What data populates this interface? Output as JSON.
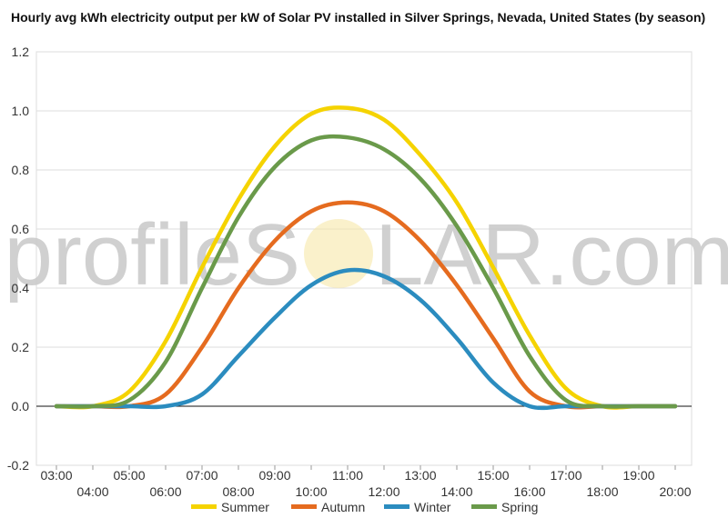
{
  "chart_data": {
    "type": "line",
    "title": "Hourly avg kWh electricity output per kW of Solar PV installed in Silver Springs, Nevada, United States (by season)",
    "xlabel": "",
    "ylabel": "",
    "ylim": [
      -0.2,
      1.2
    ],
    "yticks": [
      "-0.2",
      "0.0",
      "0.2",
      "0.4",
      "0.6",
      "0.8",
      "1.0",
      "1.2"
    ],
    "x": [
      "03:00",
      "04:00",
      "05:00",
      "06:00",
      "07:00",
      "08:00",
      "09:00",
      "10:00",
      "11:00",
      "12:00",
      "13:00",
      "14:00",
      "15:00",
      "16:00",
      "17:00",
      "18:00",
      "19:00",
      "20:00"
    ],
    "grid": true,
    "legend_position": "bottom",
    "series": [
      {
        "name": "Summer",
        "color": "#f5d300",
        "values": [
          0.0,
          0.0,
          0.05,
          0.22,
          0.47,
          0.7,
          0.88,
          0.99,
          1.01,
          0.97,
          0.85,
          0.69,
          0.47,
          0.24,
          0.06,
          0.0,
          0.0,
          0.0
        ]
      },
      {
        "name": "Autumn",
        "color": "#e56b1f",
        "values": [
          0.0,
          0.0,
          0.0,
          0.04,
          0.2,
          0.4,
          0.56,
          0.66,
          0.69,
          0.66,
          0.56,
          0.41,
          0.23,
          0.05,
          0.0,
          0.0,
          0.0,
          0.0
        ]
      },
      {
        "name": "Winter",
        "color": "#2b8cbf",
        "values": [
          0.0,
          0.0,
          0.0,
          0.0,
          0.04,
          0.17,
          0.3,
          0.41,
          0.46,
          0.44,
          0.36,
          0.23,
          0.08,
          0.0,
          0.0,
          0.0,
          0.0,
          0.0
        ]
      },
      {
        "name": "Spring",
        "color": "#6a9a4a",
        "values": [
          0.0,
          0.0,
          0.02,
          0.15,
          0.4,
          0.64,
          0.81,
          0.9,
          0.91,
          0.87,
          0.77,
          0.61,
          0.4,
          0.17,
          0.02,
          0.0,
          0.0,
          0.0
        ]
      }
    ]
  },
  "watermark": {
    "text_left": "profileS",
    "text_right": "LAR.com"
  }
}
